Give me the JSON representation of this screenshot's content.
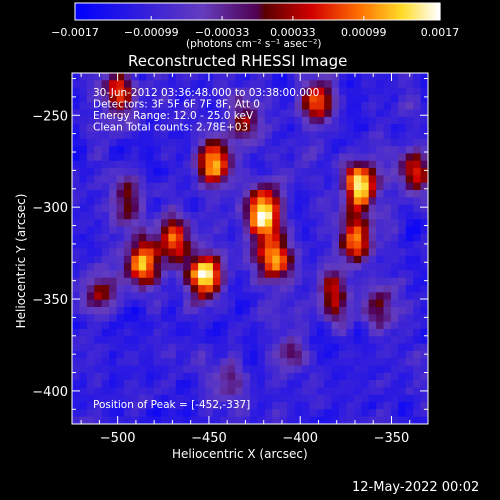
{
  "chart_data": {
    "type": "heatmap",
    "title": "Reconstructed RHESSI Image",
    "xlabel": "Heliocentric X (arcsec)",
    "ylabel": "Heliocentric Y (arcsec)",
    "xlim": [
      -525,
      -330
    ],
    "ylim": [
      -418,
      -227
    ],
    "x_ticks": [
      -500,
      -450,
      -400,
      -350
    ],
    "y_ticks": [
      -400,
      -350,
      -300,
      -250
    ],
    "x_tick_labels": [
      "−500",
      "−450",
      "−400",
      "−350"
    ],
    "y_tick_labels": [
      "−400",
      "−350",
      "−300",
      "−250"
    ],
    "colorbar": {
      "min": -0.0017,
      "max": 0.0017,
      "tick_labels": [
        "−0.0017",
        "−0.00099",
        "−0.00033",
        "0.00033",
        "0.00099",
        "0.0017"
      ],
      "tick_values": [
        -0.0017,
        -0.00099,
        -0.00033,
        0.00033,
        0.00099,
        0.0017
      ],
      "units_label": "(photons cm⁻² s⁻¹ asec⁻²)"
    },
    "annotations": [
      "30-Jun-2012 03:36:48.000 to 03:38:00.000",
      "Detectors: 3F 5F 6F 7F 8F, Att 0",
      "Energy Range: 12.0 - 25.0 keV",
      "Clean     Total counts: 2.78E+03"
    ],
    "peak_label": "Position of Peak = [-452,-337]",
    "peak_position": [
      -452,
      -337
    ],
    "sources": [
      {
        "x": -452,
        "y": -337,
        "amp": 1.0
      },
      {
        "x": -420,
        "y": -303,
        "amp": 0.95
      },
      {
        "x": -414,
        "y": -328,
        "amp": 0.8
      },
      {
        "x": -447,
        "y": -276,
        "amp": 0.75
      },
      {
        "x": -367,
        "y": -289,
        "amp": 0.9
      },
      {
        "x": -370,
        "y": -318,
        "amp": 0.7
      },
      {
        "x": -470,
        "y": -318,
        "amp": 0.65
      },
      {
        "x": -487,
        "y": -331,
        "amp": 0.75
      },
      {
        "x": -390,
        "y": -242,
        "amp": 0.6
      },
      {
        "x": -337,
        "y": -280,
        "amp": 0.5
      },
      {
        "x": -510,
        "y": -347,
        "amp": 0.45
      },
      {
        "x": -430,
        "y": -253,
        "amp": 0.5
      },
      {
        "x": -382,
        "y": -348,
        "amp": 0.55
      },
      {
        "x": -495,
        "y": -297,
        "amp": 0.45
      },
      {
        "x": -500,
        "y": -239,
        "amp": 0.55
      },
      {
        "x": -355,
        "y": -354,
        "amp": 0.45
      },
      {
        "x": -405,
        "y": -380,
        "amp": 0.35
      },
      {
        "x": -440,
        "y": -395,
        "amp": 0.3
      }
    ],
    "grid": false
  },
  "footer": {
    "timestamp": "12-May-2022 00:02"
  }
}
